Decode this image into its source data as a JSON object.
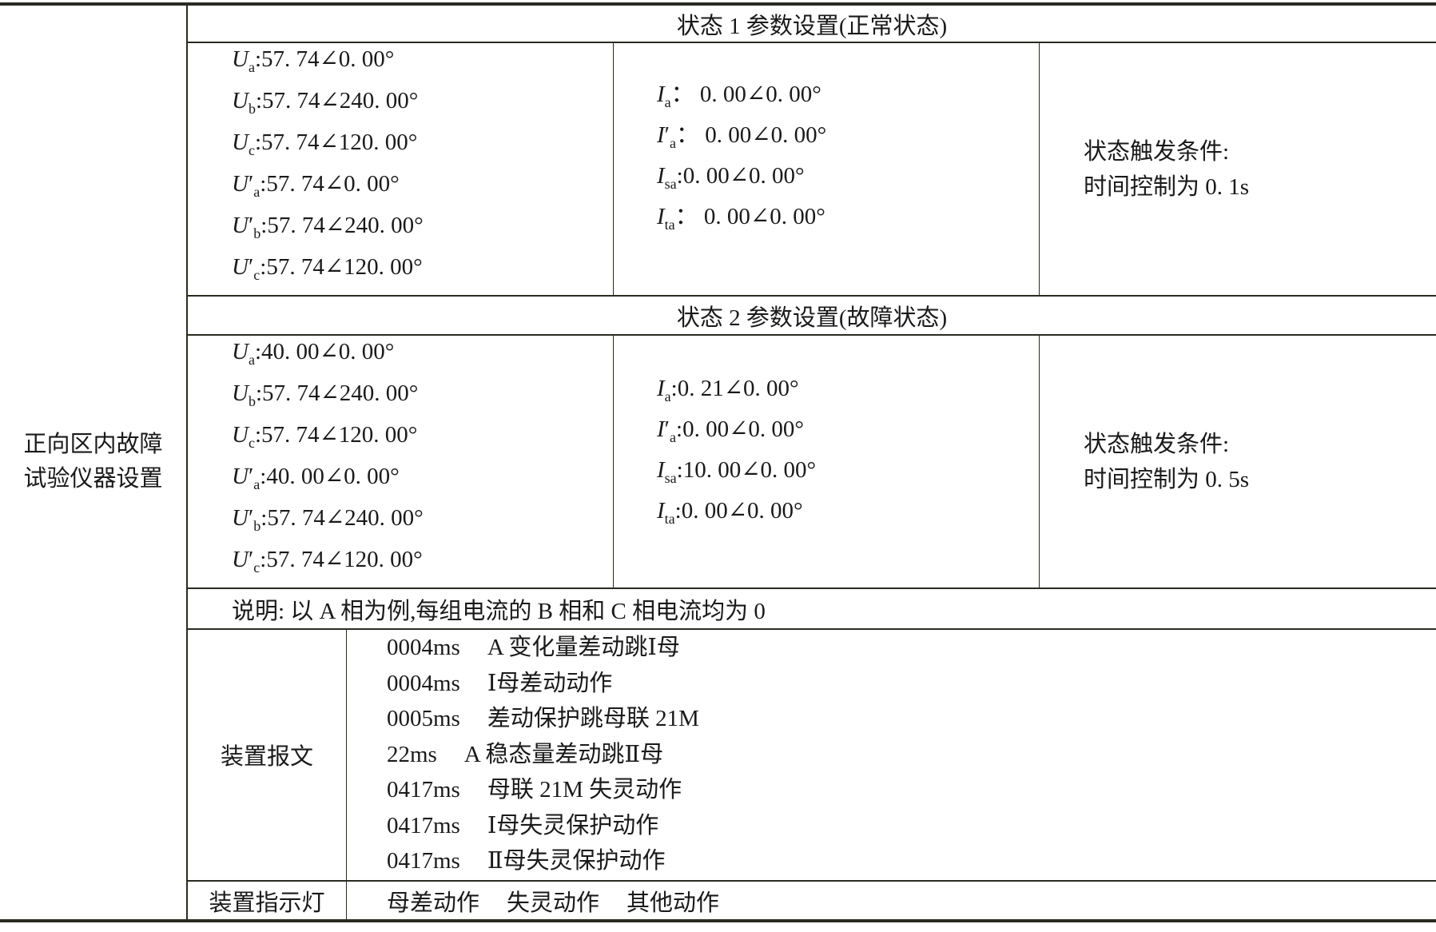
{
  "left_label": [
    "正向区内故障",
    "试验仪器设置"
  ],
  "state1": {
    "title": "状态 1 参数设置(正常状态)",
    "voltages": [
      {
        "sym": "U",
        "sub": "a",
        "prime": false,
        "value": ":57. 74∠0. 00°"
      },
      {
        "sym": "U",
        "sub": "b",
        "prime": false,
        "value": ":57. 74∠240. 00°"
      },
      {
        "sym": "U",
        "sub": "c",
        "prime": false,
        "value": ":57. 74∠120. 00°"
      },
      {
        "sym": "U",
        "sub": "a",
        "prime": true,
        "value": ":57. 74∠0. 00°"
      },
      {
        "sym": "U",
        "sub": "b",
        "prime": true,
        "value": ":57. 74∠240. 00°"
      },
      {
        "sym": "U",
        "sub": "c",
        "prime": true,
        "value": ":57. 74∠120. 00°"
      }
    ],
    "currents": [
      {
        "sym": "I",
        "sub": "a",
        "prime": false,
        "value": "： 0. 00∠0. 00°"
      },
      {
        "sym": "I",
        "sub": "a",
        "prime": true,
        "value": "： 0. 00∠0. 00°"
      },
      {
        "sym": "I",
        "sub": "sa",
        "prime": false,
        "value": ":0. 00∠0. 00°"
      },
      {
        "sym": "I",
        "sub": "ta",
        "prime": false,
        "value": "： 0. 00∠0. 00°"
      }
    ],
    "trigger": [
      "状态触发条件:",
      "时间控制为 0. 1s"
    ]
  },
  "state2": {
    "title": "状态 2 参数设置(故障状态)",
    "voltages": [
      {
        "sym": "U",
        "sub": "a",
        "prime": false,
        "value": ":40. 00∠0. 00°"
      },
      {
        "sym": "U",
        "sub": "b",
        "prime": false,
        "value": ":57. 74∠240. 00°"
      },
      {
        "sym": "U",
        "sub": "c",
        "prime": false,
        "value": ":57. 74∠120. 00°"
      },
      {
        "sym": "U",
        "sub": "a",
        "prime": true,
        "value": ":40. 00∠0. 00°"
      },
      {
        "sym": "U",
        "sub": "b",
        "prime": true,
        "value": ":57. 74∠240. 00°"
      },
      {
        "sym": "U",
        "sub": "c",
        "prime": true,
        "value": ":57. 74∠120. 00°"
      }
    ],
    "currents": [
      {
        "sym": "I",
        "sub": "a",
        "prime": false,
        "value": ":0. 21∠0. 00°"
      },
      {
        "sym": "I",
        "sub": "a",
        "prime": true,
        "value": ":0. 00∠0. 00°"
      },
      {
        "sym": "I",
        "sub": "sa",
        "prime": false,
        "value": ":10. 00∠0. 00°"
      },
      {
        "sym": "I",
        "sub": "ta",
        "prime": false,
        "value": ":0. 00∠0. 00°"
      }
    ],
    "trigger": [
      "状态触发条件:",
      "时间控制为 0. 5s"
    ]
  },
  "note": "说明: 以 A 相为例,每组电流的 B 相和 C 相电流均为 0",
  "messages": {
    "label": "装置报文",
    "items": [
      {
        "time": "0004ms",
        "text": "A 变化量差动跳Ⅰ母"
      },
      {
        "time": "0004ms",
        "text": "Ⅰ母差动动作"
      },
      {
        "time": "0005ms",
        "text": "差动保护跳母联 21M"
      },
      {
        "time": "22ms",
        "text": "A 稳态量差动跳Ⅱ母"
      },
      {
        "time": "0417ms",
        "text": "母联 21M 失灵动作"
      },
      {
        "time": "0417ms",
        "text": "Ⅰ母失灵保护动作"
      },
      {
        "time": "0417ms",
        "text": "Ⅱ母失灵保护动作"
      }
    ]
  },
  "indicators": {
    "label": "装置指示灯",
    "items": [
      "母差动作",
      "失灵动作",
      "其他动作"
    ]
  }
}
